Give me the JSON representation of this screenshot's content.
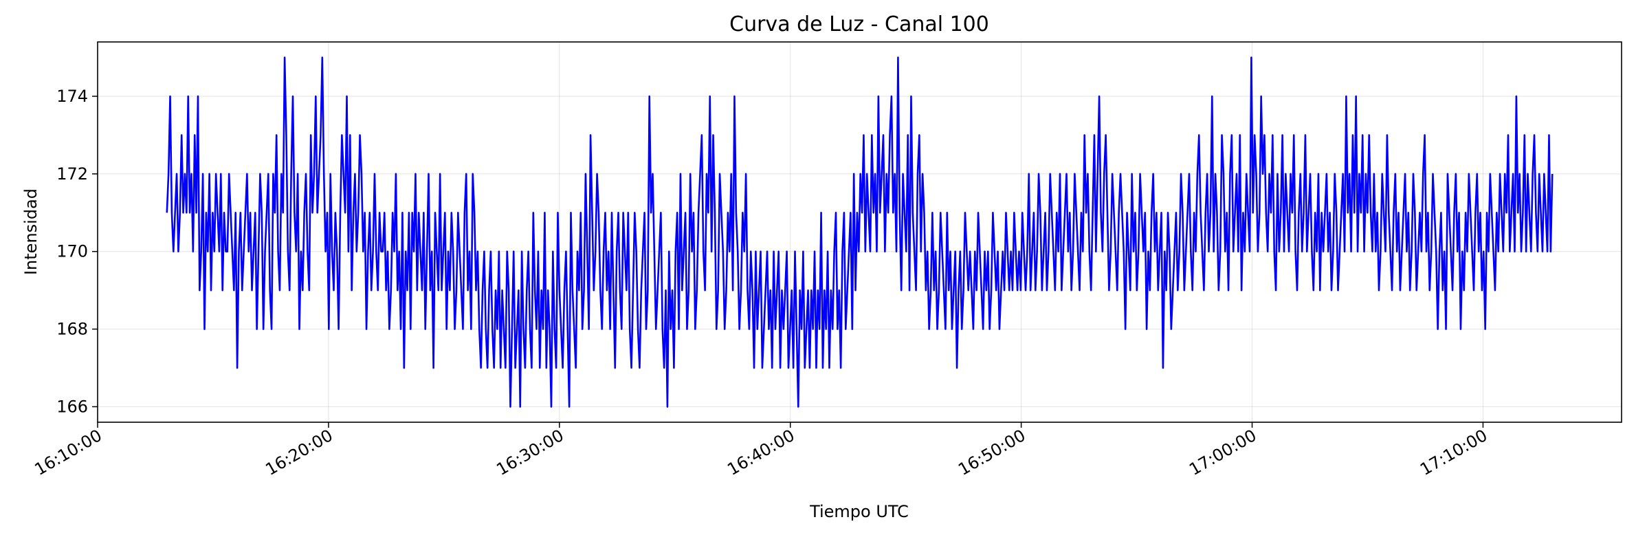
{
  "chart_data": {
    "type": "line",
    "title": "Curva de Luz - Canal 100",
    "xlabel": "Tiempo UTC",
    "ylabel": "Intensidad",
    "x_ticks": [
      "16:10:00",
      "16:20:00",
      "16:30:00",
      "16:40:00",
      "16:50:00",
      "17:00:00",
      "17:10:00"
    ],
    "y_ticks": [
      166,
      168,
      170,
      172,
      174
    ],
    "xlim": [
      "16:10:00",
      "17:16:00"
    ],
    "ylim": [
      165.6,
      175.4
    ],
    "grid": true,
    "series_color": "#0000ff",
    "series": [
      {
        "x_start": "16:13:00",
        "x_end": "17:13:00",
        "values": [
          171,
          172,
          174,
          171,
          170,
          171,
          172,
          170,
          171,
          173,
          171,
          172,
          171,
          174,
          171,
          172,
          170,
          173,
          171,
          174,
          169,
          170,
          172,
          168,
          171,
          170,
          172,
          169,
          171,
          170,
          172,
          171,
          170,
          172,
          169,
          171,
          170,
          170,
          172,
          171,
          170,
          169,
          171,
          167,
          170,
          171,
          169,
          170,
          171,
          172,
          170,
          171,
          169,
          170,
          171,
          168,
          170,
          172,
          171,
          168,
          170,
          171,
          172,
          169,
          168,
          172,
          171,
          173,
          170,
          169,
          172,
          171,
          175,
          173,
          170,
          169,
          172,
          174,
          171,
          170,
          172,
          168,
          170,
          169,
          171,
          172,
          170,
          169,
          173,
          171,
          172,
          174,
          171,
          172,
          173,
          175,
          172,
          170,
          171,
          168,
          172,
          170,
          169,
          171,
          170,
          168,
          171,
          173,
          172,
          171,
          174,
          170,
          173,
          169,
          171,
          172,
          170,
          171,
          173,
          172,
          170,
          171,
          168,
          170,
          171,
          169,
          170,
          172,
          170,
          169,
          171,
          170,
          170,
          171,
          169,
          170,
          168,
          169,
          171,
          170,
          172,
          169,
          170,
          168,
          171,
          167,
          170,
          169,
          171,
          168,
          171,
          170,
          172,
          169,
          171,
          170,
          169,
          171,
          168,
          170,
          172,
          169,
          170,
          167,
          171,
          170,
          169,
          172,
          169,
          170,
          171,
          168,
          170,
          169,
          171,
          170,
          168,
          169,
          171,
          170,
          169,
          168,
          171,
          172,
          169,
          170,
          168,
          172,
          171,
          169,
          170,
          168,
          167,
          169,
          170,
          168,
          167,
          169,
          170,
          168,
          167,
          169,
          168,
          170,
          167,
          169,
          168,
          167,
          170,
          169,
          166,
          168,
          170,
          167,
          168,
          169,
          166,
          170,
          168,
          167,
          169,
          170,
          168,
          167,
          171,
          169,
          168,
          170,
          167,
          169,
          168,
          171,
          167,
          169,
          168,
          166,
          170,
          168,
          167,
          171,
          169,
          168,
          167,
          169,
          170,
          168,
          166,
          171,
          169,
          168,
          167,
          170,
          169,
          171,
          168,
          169,
          172,
          170,
          168,
          173,
          171,
          169,
          170,
          172,
          171,
          169,
          168,
          170,
          171,
          169,
          170,
          168,
          171,
          169,
          167,
          170,
          171,
          169,
          168,
          171,
          170,
          169,
          171,
          168,
          167,
          169,
          171,
          170,
          168,
          167,
          169,
          170,
          171,
          168,
          169,
          174,
          171,
          172,
          170,
          168,
          169,
          170,
          171,
          168,
          167,
          169,
          166,
          170,
          168,
          169,
          167,
          170,
          171,
          168,
          172,
          169,
          170,
          171,
          168,
          169,
          172,
          170,
          171,
          168,
          169,
          171,
          172,
          173,
          170,
          169,
          172,
          171,
          174,
          170,
          173,
          171,
          168,
          169,
          172,
          171,
          170,
          168,
          169,
          171,
          170,
          172,
          169,
          174,
          171,
          170,
          168,
          169,
          171,
          170,
          172,
          169,
          168,
          170,
          169,
          167,
          170,
          168,
          169,
          170,
          167,
          168,
          169,
          170,
          168,
          169,
          167,
          170,
          168,
          169,
          170,
          167,
          169,
          168,
          169,
          170,
          167,
          168,
          169,
          167,
          170,
          168,
          166,
          169,
          168,
          170,
          167,
          168,
          169,
          167,
          169,
          168,
          170,
          167,
          169,
          168,
          171,
          167,
          169,
          168,
          170,
          167,
          169,
          168,
          170,
          171,
          168,
          169,
          167,
          170,
          171,
          168,
          169,
          170,
          171,
          168,
          172,
          169,
          171,
          170,
          172,
          171,
          173,
          170,
          172,
          171,
          170,
          173,
          171,
          172,
          170,
          174,
          171,
          172,
          173,
          170,
          172,
          171,
          173,
          174,
          171,
          172,
          170,
          175,
          171,
          169,
          172,
          171,
          170,
          173,
          169,
          174,
          171,
          170,
          169,
          172,
          173,
          170,
          172,
          171,
          169,
          170,
          168,
          169,
          171,
          169,
          170,
          168,
          169,
          171,
          170,
          169,
          168,
          171,
          169,
          170,
          168,
          169,
          170,
          167,
          169,
          170,
          168,
          169,
          171,
          170,
          169,
          170,
          169,
          168,
          170,
          169,
          171,
          170,
          169,
          168,
          170,
          169,
          170,
          168,
          169,
          171,
          170,
          169,
          170,
          168,
          169,
          170,
          169,
          171,
          170,
          169,
          170,
          169,
          171,
          170,
          169,
          170,
          169,
          171,
          170,
          169,
          170,
          172,
          169,
          170,
          171,
          169,
          170,
          172,
          171,
          169,
          170,
          171,
          169,
          170,
          172,
          171,
          170,
          169,
          171,
          170,
          172,
          169,
          170,
          171,
          172,
          170,
          171,
          169,
          170,
          172,
          171,
          170,
          169,
          171,
          170,
          173,
          171,
          172,
          170,
          169,
          171,
          173,
          170,
          172,
          174,
          171,
          170,
          172,
          173,
          171,
          169,
          170,
          172,
          171,
          170,
          169,
          171,
          172,
          171,
          170,
          168,
          171,
          170,
          169,
          172,
          170,
          171,
          169,
          170,
          172,
          171,
          170,
          171,
          168,
          170,
          169,
          171,
          172,
          170,
          171,
          169,
          170,
          171,
          167,
          170,
          169,
          171,
          170,
          168,
          169,
          170,
          171,
          169,
          170,
          172,
          171,
          169,
          170,
          171,
          172,
          170,
          169,
          171,
          170,
          172,
          173,
          171,
          170,
          169,
          171,
          172,
          170,
          171,
          174,
          170,
          172,
          171,
          169,
          170,
          173,
          172,
          170,
          171,
          169,
          172,
          173,
          170,
          171,
          172,
          170,
          173,
          169,
          171,
          170,
          172,
          171,
          170,
          175,
          171,
          173,
          172,
          170,
          171,
          174,
          172,
          173,
          171,
          170,
          172,
          171,
          173,
          170,
          169,
          172,
          170,
          171,
          173,
          170,
          172,
          171,
          170,
          172,
          171,
          173,
          170,
          169,
          171,
          172,
          170,
          171,
          173,
          170,
          171,
          172,
          170,
          169,
          171,
          170,
          172,
          169,
          171,
          170,
          171,
          172,
          170,
          171,
          169,
          170,
          172,
          171,
          169,
          170,
          171,
          172,
          170,
          174,
          171,
          172,
          170,
          173,
          171,
          174,
          170,
          172,
          171,
          173,
          170,
          172,
          171,
          173,
          171,
          170,
          172,
          170,
          171,
          169,
          170,
          172,
          171,
          170,
          173,
          171,
          170,
          169,
          171,
          172,
          170,
          171,
          169,
          170,
          171,
          172,
          170,
          171,
          169,
          170,
          172,
          171,
          169,
          170,
          171,
          170,
          172,
          173,
          170,
          171,
          169,
          170,
          172,
          171,
          170,
          168,
          170,
          171,
          169,
          170,
          168,
          172,
          171,
          170,
          169,
          171,
          172,
          170,
          171,
          168,
          170,
          169,
          171,
          170,
          172,
          171,
          170,
          169,
          171,
          172,
          170,
          171,
          169,
          170,
          168,
          171,
          170,
          172,
          171,
          170,
          169,
          171,
          170,
          172,
          171,
          170,
          172,
          171,
          173,
          170,
          171,
          172,
          170,
          174,
          171,
          172,
          170,
          171,
          173,
          170,
          172,
          171,
          170,
          172,
          173,
          171,
          170,
          172,
          171,
          170,
          172,
          171,
          170,
          173,
          170,
          172
        ]
      }
    ]
  }
}
